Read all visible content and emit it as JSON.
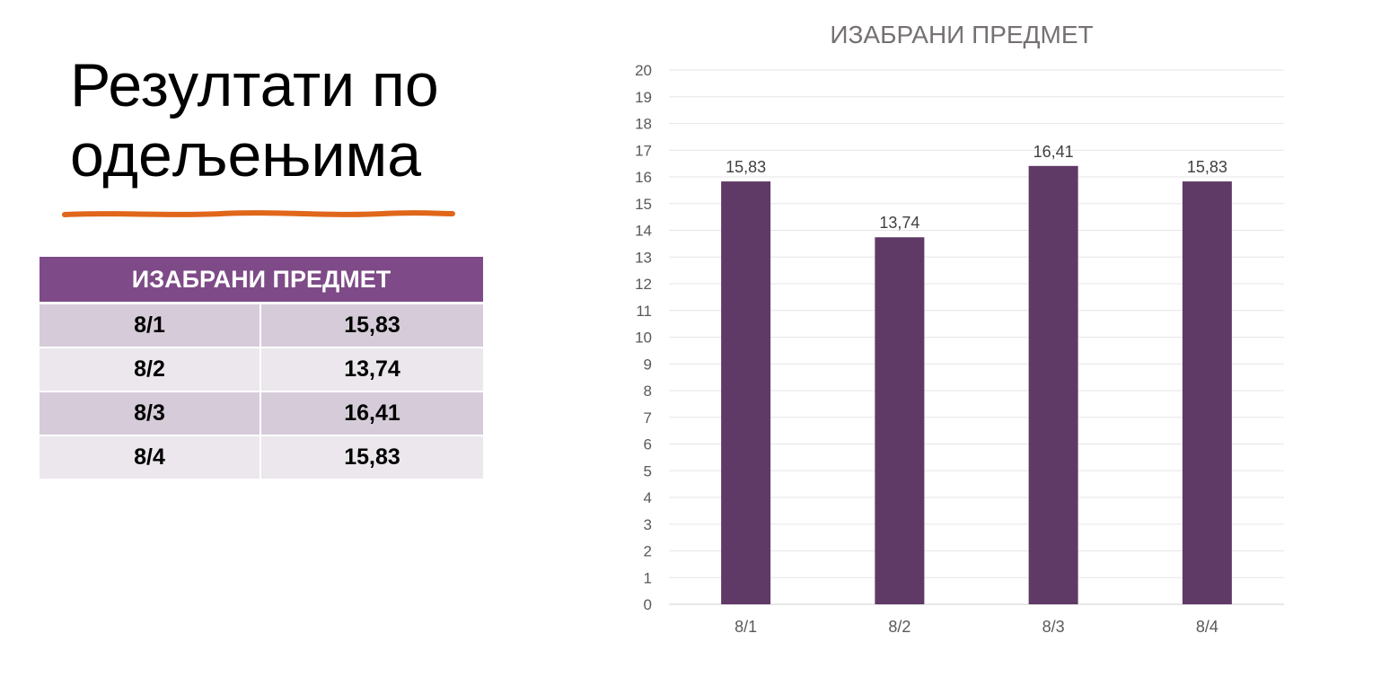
{
  "slide": {
    "title_lines": [
      "Резултати по",
      "одељењима"
    ]
  },
  "table": {
    "header": "ИЗАБРАНИ ПРЕДМЕТ",
    "rows": [
      {
        "class": "8/1",
        "value": "15,83"
      },
      {
        "class": "8/2",
        "value": "13,74"
      },
      {
        "class": "8/3",
        "value": "16,41"
      },
      {
        "class": "8/4",
        "value": "15,83"
      }
    ]
  },
  "colors": {
    "accent_stroke": "#e0661a",
    "table_header": "#7e4a87",
    "table_row_odd": "#d6ccd9",
    "table_row_even": "#ebe7ec",
    "bar": "#603a67"
  },
  "chart_data": {
    "type": "bar",
    "title": "ИЗАБРАНИ ПРЕДМЕТ",
    "categories": [
      "8/1",
      "8/2",
      "8/3",
      "8/4"
    ],
    "values": [
      15.83,
      13.74,
      16.41,
      15.83
    ],
    "data_labels": [
      "15,83",
      "13,74",
      "16,41",
      "15,83"
    ],
    "ylim": [
      0,
      20
    ],
    "yticks": [
      0,
      1,
      2,
      3,
      4,
      5,
      6,
      7,
      8,
      9,
      10,
      11,
      12,
      13,
      14,
      15,
      16,
      17,
      18,
      19,
      20
    ],
    "xlabel": "",
    "ylabel": "",
    "grid": true,
    "legend": "none"
  }
}
